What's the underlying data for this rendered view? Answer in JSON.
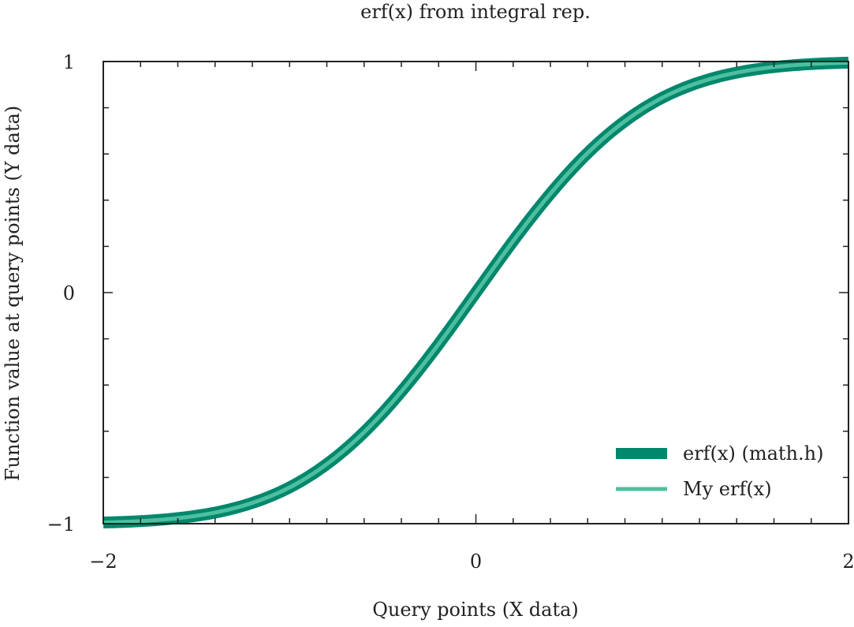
{
  "chart_data": {
    "type": "line",
    "title": "erf(x) from integral rep.",
    "xlabel": "Query points (X data)",
    "ylabel": "Function value at query points (Y data)",
    "xlim": [
      -2,
      2
    ],
    "ylim": [
      -1,
      1
    ],
    "xticks": [
      {
        "value": -2,
        "label": "−2"
      },
      {
        "value": 0,
        "label": "0"
      },
      {
        "value": 2,
        "label": "2"
      }
    ],
    "yticks": [
      {
        "value": -1,
        "label": "−1"
      },
      {
        "value": 0,
        "label": "0"
      },
      {
        "value": 1,
        "label": "1"
      }
    ],
    "grid": false,
    "legend_position": "bottom-right",
    "x": [
      -2.0,
      -1.8,
      -1.6,
      -1.4,
      -1.2,
      -1.0,
      -0.8,
      -0.6,
      -0.4,
      -0.2,
      0.0,
      0.2,
      0.4,
      0.6,
      0.8,
      1.0,
      1.2,
      1.4,
      1.6,
      1.8,
      2.0
    ],
    "series": [
      {
        "name": "erf(x) (math.h)",
        "color": "#00876c",
        "values": [
          -0.995,
          -0.989,
          -0.976,
          -0.952,
          -0.91,
          -0.843,
          -0.742,
          -0.604,
          -0.428,
          -0.223,
          0.0,
          0.223,
          0.428,
          0.604,
          0.742,
          0.843,
          0.91,
          0.952,
          0.976,
          0.989,
          0.995
        ]
      },
      {
        "name": "My erf(x)",
        "color": "#4dbf9f",
        "values": [
          -0.995,
          -0.989,
          -0.976,
          -0.952,
          -0.91,
          -0.843,
          -0.742,
          -0.604,
          -0.428,
          -0.223,
          0.0,
          0.223,
          0.428,
          0.604,
          0.742,
          0.843,
          0.91,
          0.952,
          0.976,
          0.989,
          0.995
        ]
      }
    ]
  }
}
